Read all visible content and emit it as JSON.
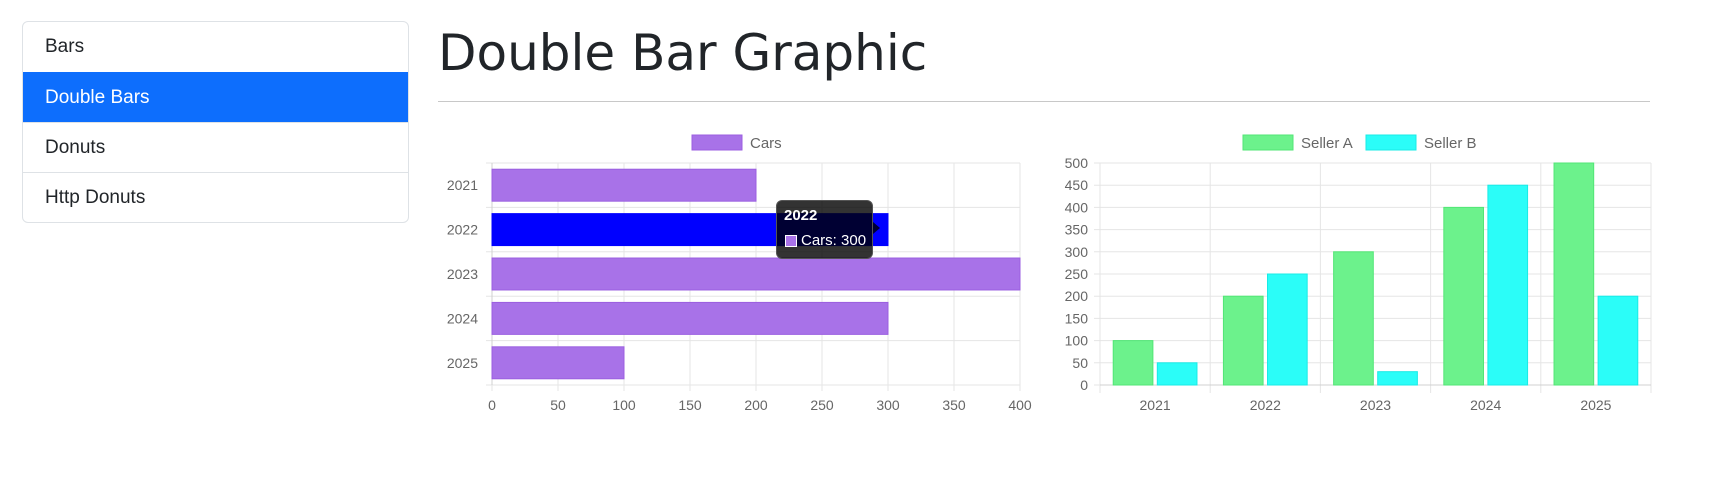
{
  "sidebar": {
    "items": [
      {
        "label": "Bars",
        "active": false
      },
      {
        "label": "Double Bars",
        "active": true
      },
      {
        "label": "Donuts",
        "active": false
      },
      {
        "label": "Http Donuts",
        "active": false
      }
    ]
  },
  "page": {
    "title": "Double Bar Graphic"
  },
  "colors": {
    "accent": "#0d6efd",
    "cars": "#a872e8",
    "cars_hover": "#0000ff",
    "seller_a": "#6cf28c",
    "seller_b": "#2bfdf8",
    "grid": "#e5e5e5"
  },
  "chart_data": [
    {
      "type": "bar",
      "orientation": "horizontal",
      "categories": [
        "2021",
        "2022",
        "2023",
        "2024",
        "2025"
      ],
      "series": [
        {
          "name": "Cars",
          "values": [
            200,
            300,
            400,
            300,
            100
          ]
        }
      ],
      "xlim": [
        0,
        400
      ],
      "x_ticks": [
        "0",
        "50",
        "100",
        "150",
        "200",
        "250",
        "300",
        "350",
        "400"
      ],
      "grid": true,
      "legend": "top",
      "highlighted_category": "2022",
      "tooltip": {
        "title": "2022",
        "label": "Cars: 300"
      }
    },
    {
      "type": "bar",
      "orientation": "vertical",
      "categories": [
        "2021",
        "2022",
        "2023",
        "2024",
        "2025"
      ],
      "series": [
        {
          "name": "Seller A",
          "values": [
            100,
            200,
            300,
            400,
            500
          ]
        },
        {
          "name": "Seller B",
          "values": [
            50,
            250,
            30,
            450,
            200
          ]
        }
      ],
      "ylim": [
        0,
        500
      ],
      "y_ticks": [
        "500",
        "450",
        "400",
        "350",
        "300",
        "250",
        "200",
        "150",
        "100",
        "50",
        "0"
      ],
      "grid": true,
      "legend": "top"
    }
  ]
}
